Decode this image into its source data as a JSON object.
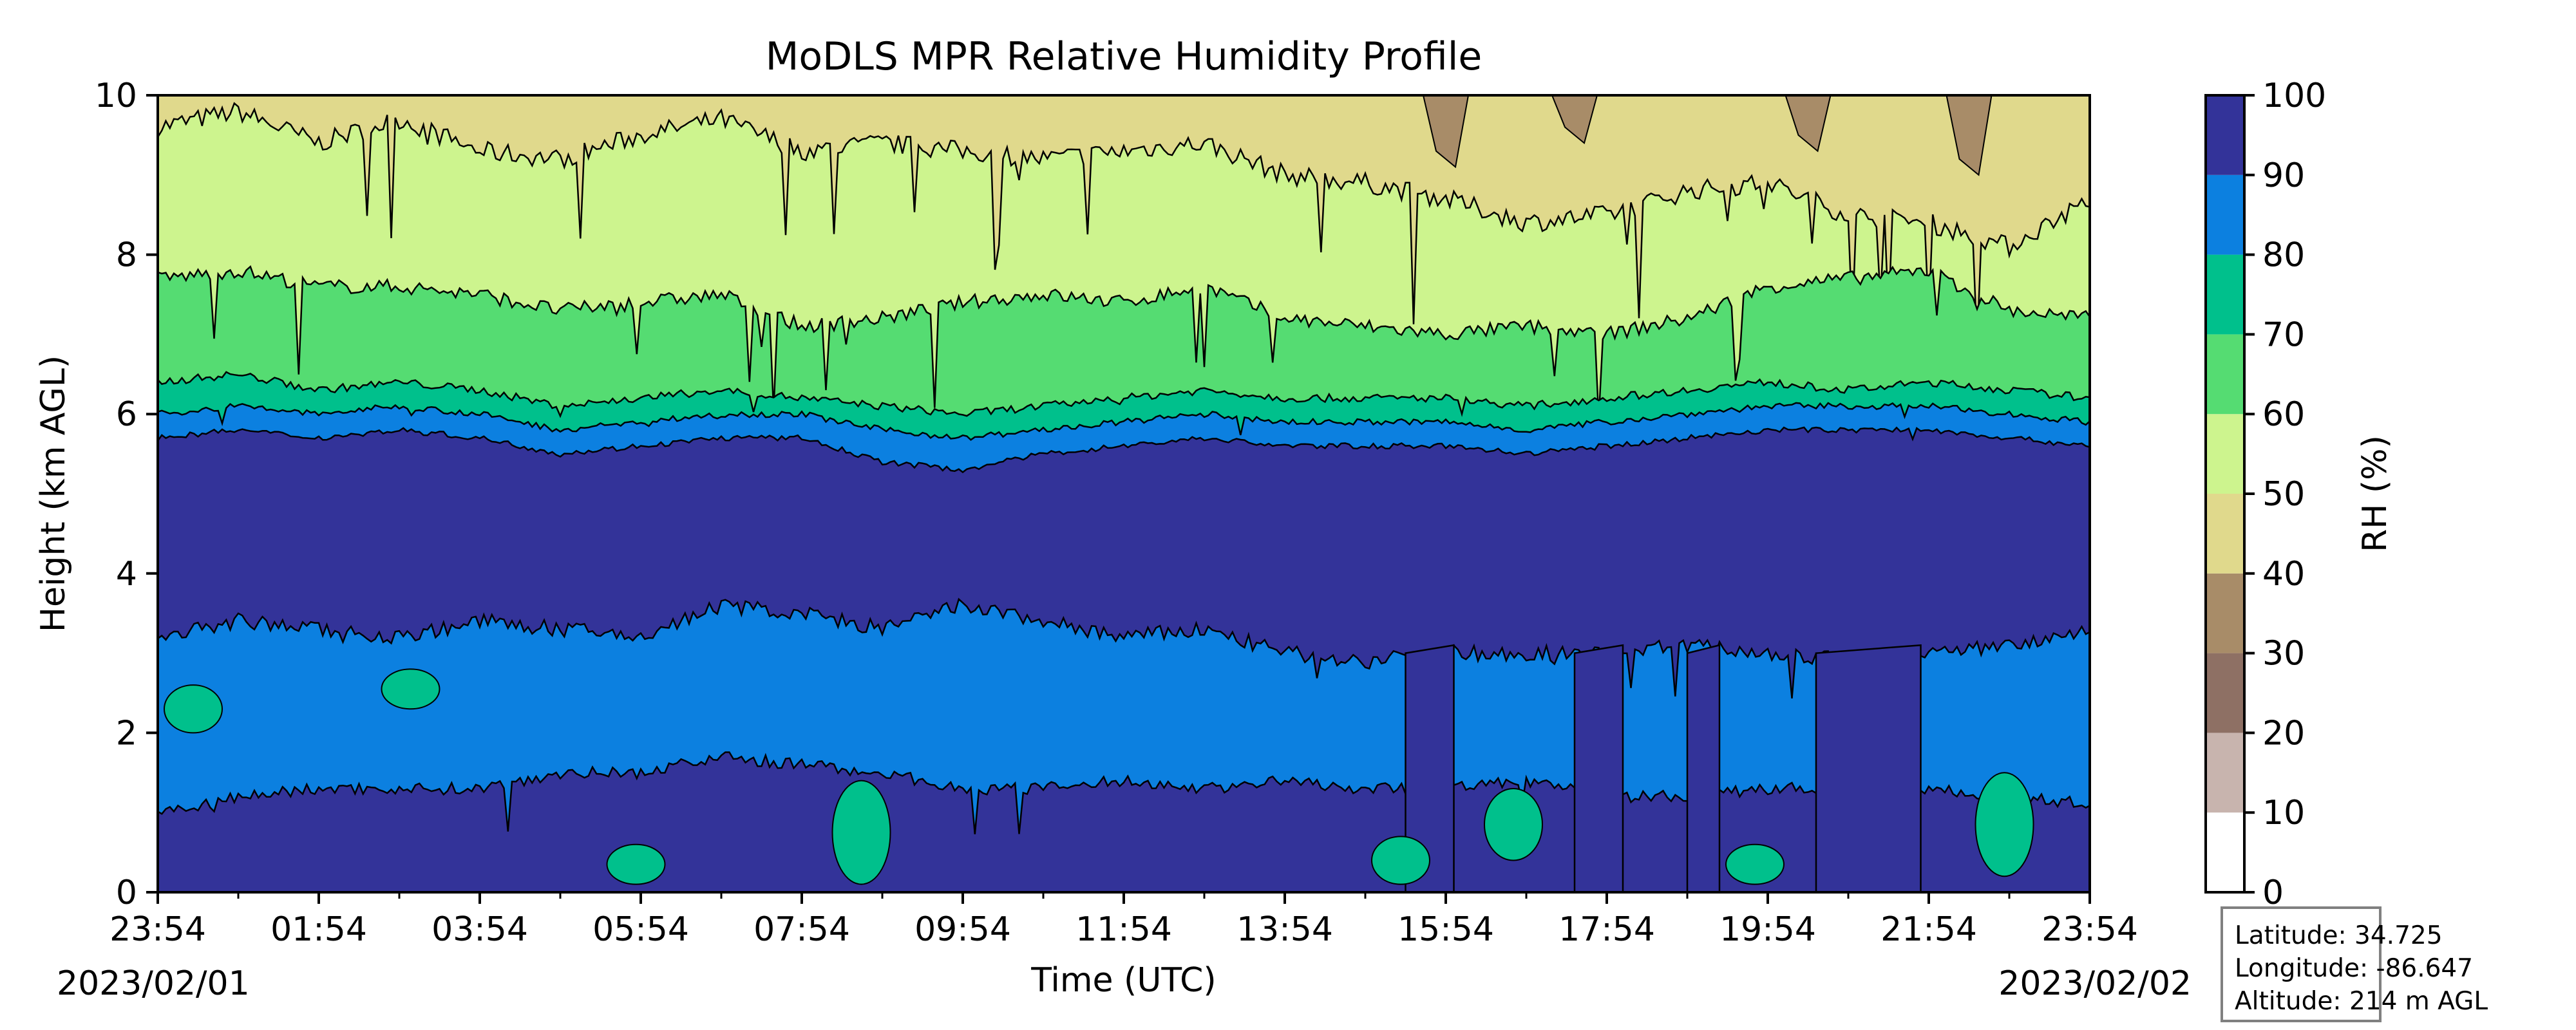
{
  "chart_data": {
    "type": "heatmap",
    "title": "MoDLS MPR Relative Humidity Profile",
    "xlabel": "Time (UTC)",
    "ylabel": "Height (km AGL)",
    "xticks": [
      "23:54",
      "01:54",
      "03:54",
      "05:54",
      "07:54",
      "09:54",
      "11:54",
      "13:54",
      "15:54",
      "17:54",
      "19:54",
      "21:54",
      "23:54"
    ],
    "yticks": [
      0,
      2,
      4,
      6,
      8,
      10
    ],
    "ylim": [
      0,
      10
    ],
    "start_date": "2023/02/01",
    "end_date": "2023/02/02",
    "colorbar": {
      "label": "RH (%)",
      "ticks": [
        0,
        10,
        20,
        30,
        40,
        50,
        60,
        70,
        80,
        90,
        100
      ],
      "colors": [
        "#ffffff",
        "#c8b4ae",
        "#8e7064",
        "#a88c68",
        "#e0d98c",
        "#cdf48e",
        "#55dc72",
        "#00c08c",
        "#0c80e0",
        "#333399"
      ]
    },
    "profile": {
      "comment_levels": [
        90,
        80,
        70,
        60,
        50,
        40
      ],
      "time_hours": [
        0,
        1,
        2,
        3,
        4,
        5,
        6,
        7,
        8,
        9,
        10,
        11,
        12,
        13,
        14,
        15,
        16,
        17,
        18,
        19,
        20,
        21,
        22,
        23,
        24
      ],
      "top_of_90_km": [
        5.7,
        5.8,
        5.7,
        5.8,
        5.7,
        5.5,
        5.6,
        5.7,
        5.7,
        5.4,
        5.3,
        5.5,
        5.6,
        5.7,
        5.6,
        5.6,
        5.6,
        5.5,
        5.6,
        5.7,
        5.8,
        5.8,
        5.8,
        5.7,
        5.6
      ],
      "top_of_80_km": [
        6.0,
        6.1,
        6.0,
        6.1,
        6.0,
        5.8,
        5.9,
        6.0,
        6.0,
        5.8,
        5.7,
        5.8,
        5.9,
        6.0,
        5.9,
        5.9,
        5.9,
        5.8,
        5.9,
        6.0,
        6.1,
        6.1,
        6.1,
        6.0,
        5.9
      ],
      "top_of_70_km": [
        6.4,
        6.5,
        6.3,
        6.4,
        6.3,
        6.1,
        6.2,
        6.3,
        6.2,
        6.1,
        6.0,
        6.1,
        6.2,
        6.3,
        6.2,
        6.2,
        6.2,
        6.1,
        6.2,
        6.3,
        6.4,
        6.3,
        6.4,
        6.3,
        6.2
      ],
      "top_of_60_km": [
        7.7,
        7.8,
        7.6,
        7.6,
        7.5,
        7.3,
        7.4,
        7.5,
        7.1,
        7.2,
        7.4,
        7.5,
        7.4,
        7.6,
        7.2,
        7.1,
        7.0,
        7.1,
        7.0,
        7.2,
        7.6,
        7.7,
        7.8,
        7.3,
        7.2
      ],
      "top_of_50_km": [
        9.6,
        9.8,
        9.4,
        9.7,
        9.3,
        9.2,
        9.5,
        9.7,
        9.3,
        9.4,
        9.3,
        9.2,
        9.3,
        9.4,
        9.0,
        8.9,
        8.7,
        8.4,
        8.5,
        8.8,
        8.9,
        8.5,
        8.4,
        8.1,
        8.7
      ],
      "low_layer_top_km": [
        1.0,
        1.2,
        1.3,
        1.3,
        1.3,
        1.5,
        1.5,
        1.7,
        1.6,
        1.5,
        1.3,
        1.3,
        1.4,
        1.3,
        1.4,
        1.3,
        1.3,
        1.4,
        1.2,
        1.2,
        1.3,
        1.3,
        1.3,
        1.2,
        1.1
      ],
      "mid_dry_top_km": [
        3.2,
        3.4,
        3.3,
        3.2,
        3.4,
        3.3,
        3.2,
        3.6,
        3.5,
        3.3,
        3.6,
        3.4,
        3.2,
        3.3,
        3.0,
        2.9,
        3.0,
        3.0,
        3.0,
        3.1,
        3.0,
        2.9,
        3.0,
        3.1,
        3.3
      ]
    }
  },
  "info_box": {
    "latitude": "Latitude: 34.725",
    "longitude": "Longitude: -86.647",
    "altitude": "Altitude: 214 m AGL"
  }
}
